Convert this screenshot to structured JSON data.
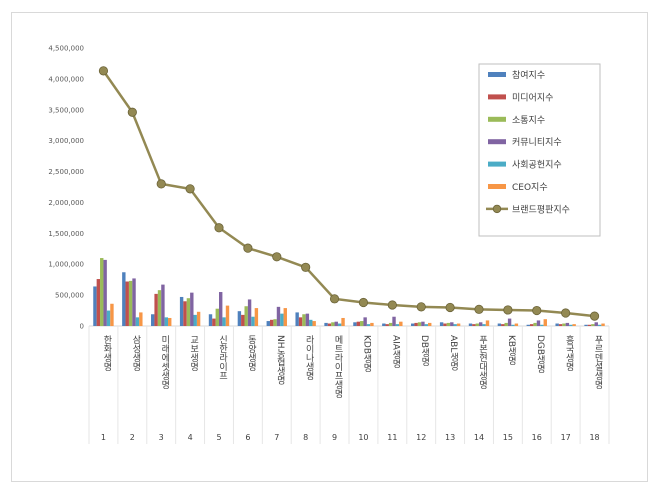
{
  "chart_data": {
    "type": "bar",
    "y_ticks": [
      "0",
      "500,000",
      "1,000,000",
      "1,500,000",
      "2,000,000",
      "2,500,000",
      "3,000,000",
      "3,500,000",
      "4,000,000",
      "4,500,000"
    ],
    "ylim": [
      0,
      4500000
    ],
    "grid": false,
    "legend_position": "top-right",
    "x_numbers": [
      "1",
      "2",
      "3",
      "4",
      "5",
      "6",
      "7",
      "8",
      "9",
      "10",
      "11",
      "12",
      "13",
      "14",
      "15",
      "16",
      "17",
      "18"
    ],
    "categories": [
      "한화생명",
      "삼성생명",
      "미래에셋생명",
      "교보생명",
      "신한라이프",
      "동양생명",
      "NH농협생명",
      "라이나생명",
      "메트라이프생명",
      "KDB생명",
      "AIA생명",
      "DB생명",
      "ABL생명",
      "푸본현대생명",
      "KB생명",
      "DGB생명",
      "흥국생명",
      "푸르덴셜생명"
    ],
    "series": [
      {
        "name": "참여지수",
        "color": "#4f81bd",
        "values": [
          640000,
          870000,
          190000,
          470000,
          190000,
          240000,
          80000,
          220000,
          50000,
          60000,
          40000,
          40000,
          60000,
          40000,
          40000,
          20000,
          40000,
          20000
        ]
      },
      {
        "name": "미디어지수",
        "color": "#c0504d",
        "values": [
          760000,
          720000,
          520000,
          400000,
          120000,
          180000,
          100000,
          140000,
          40000,
          70000,
          30000,
          50000,
          40000,
          30000,
          30000,
          30000,
          30000,
          20000
        ]
      },
      {
        "name": "소통지수",
        "color": "#9bbb59",
        "values": [
          1100000,
          730000,
          580000,
          450000,
          280000,
          320000,
          110000,
          190000,
          60000,
          80000,
          50000,
          60000,
          50000,
          40000,
          50000,
          50000,
          40000,
          30000
        ]
      },
      {
        "name": "커뮤니티지수",
        "color": "#8064a2",
        "values": [
          1070000,
          770000,
          670000,
          540000,
          550000,
          430000,
          310000,
          200000,
          70000,
          140000,
          150000,
          70000,
          60000,
          60000,
          120000,
          90000,
          50000,
          60000
        ]
      },
      {
        "name": "사회공헌지수",
        "color": "#4bacc6",
        "values": [
          250000,
          140000,
          140000,
          180000,
          140000,
          150000,
          200000,
          100000,
          40000,
          30000,
          30000,
          30000,
          30000,
          30000,
          20000,
          20000,
          20000,
          20000
        ]
      },
      {
        "name": "CEO지수",
        "color": "#f79646",
        "values": [
          360000,
          220000,
          130000,
          230000,
          330000,
          290000,
          290000,
          80000,
          130000,
          50000,
          70000,
          50000,
          40000,
          90000,
          40000,
          110000,
          30000,
          40000
        ]
      }
    ],
    "line": {
      "name": "브랜드평판지수",
      "color": "#938953",
      "values": [
        4130000,
        3460000,
        2300000,
        2220000,
        1590000,
        1260000,
        1120000,
        950000,
        440000,
        380000,
        340000,
        310000,
        300000,
        270000,
        260000,
        250000,
        210000,
        160000
      ]
    }
  }
}
